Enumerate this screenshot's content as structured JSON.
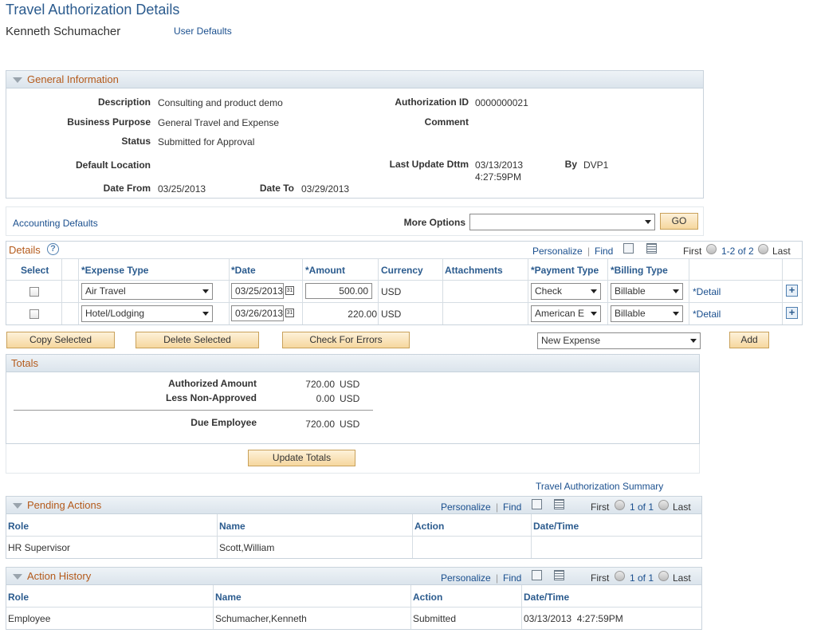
{
  "page": {
    "title": "Travel Authorization Details",
    "employee_name": "Kenneth Schumacher",
    "user_defaults_link": "User Defaults"
  },
  "general": {
    "header": "General Information",
    "description_label": "Description",
    "description": "Consulting and product demo",
    "business_purpose_label": "Business Purpose",
    "business_purpose": "General Travel and Expense",
    "status_label": "Status",
    "status": "Submitted for Approval",
    "default_location_label": "Default Location",
    "date_from_label": "Date From",
    "date_from": "03/25/2013",
    "date_to_label": "Date To",
    "date_to": "03/29/2013",
    "auth_id_label": "Authorization ID",
    "auth_id": "0000000021",
    "comment_label": "Comment",
    "last_update_label": "Last Update Dttm",
    "last_update_date": "03/13/2013",
    "last_update_time": "4:27:59PM",
    "by_label": "By",
    "by": "DVP1"
  },
  "options": {
    "accounting_defaults": "Accounting Defaults",
    "more_options_label": "More Options",
    "more_options_value": "",
    "go": "GO"
  },
  "details": {
    "header": "Details",
    "personalize": "Personalize",
    "find": "Find",
    "first": "First",
    "range": "1-2 of 2",
    "last": "Last",
    "columns": {
      "select": "Select",
      "expense_type": "*Expense Type",
      "date": "*Date",
      "amount": "*Amount",
      "currency": "Currency",
      "attachments": "Attachments",
      "payment_type": "*Payment Type",
      "billing_type": "*Billing Type"
    },
    "rows": [
      {
        "expense_type": "Air Travel",
        "date": "03/25/2013",
        "amount": "500.00",
        "currency": "USD",
        "payment_type": "Check",
        "billing_type": "Billable",
        "detail": "*Detail"
      },
      {
        "expense_type": "Hotel/Lodging",
        "date": "03/26/2013",
        "amount": "220.00",
        "currency": "USD",
        "payment_type": "American E",
        "billing_type": "Billable",
        "detail": "*Detail"
      }
    ]
  },
  "actions": {
    "copy_selected": "Copy Selected",
    "delete_selected": "Delete Selected",
    "check_errors": "Check For Errors",
    "new_expense": "New Expense",
    "add": "Add"
  },
  "totals": {
    "header": "Totals",
    "authorized_label": "Authorized Amount",
    "authorized_value": "720.00",
    "authorized_currency": "USD",
    "non_approved_label": "Less Non-Approved",
    "non_approved_value": "0.00",
    "non_approved_currency": "USD",
    "due_label": "Due Employee",
    "due_value": "720.00",
    "due_currency": "USD",
    "update_totals": "Update Totals"
  },
  "summary_link": "Travel Authorization Summary",
  "pending": {
    "header": "Pending Actions",
    "personalize": "Personalize",
    "find": "Find",
    "first": "First",
    "range": "1 of 1",
    "last": "Last",
    "columns": {
      "role": "Role",
      "name": "Name",
      "action": "Action",
      "datetime": "Date/Time"
    },
    "rows": [
      {
        "role": "HR Supervisor",
        "name": "Scott,William",
        "action": "",
        "datetime": ""
      }
    ]
  },
  "history": {
    "header": "Action History",
    "personalize": "Personalize",
    "find": "Find",
    "first": "First",
    "range": "1 of 1",
    "last": "Last",
    "columns": {
      "role": "Role",
      "name": "Name",
      "action": "Action",
      "datetime": "Date/Time"
    },
    "rows": [
      {
        "role": "Employee",
        "name": "Schumacher,Kenneth",
        "action": "Submitted",
        "datetime": "03/13/2013  4:27:59PM"
      }
    ]
  }
}
